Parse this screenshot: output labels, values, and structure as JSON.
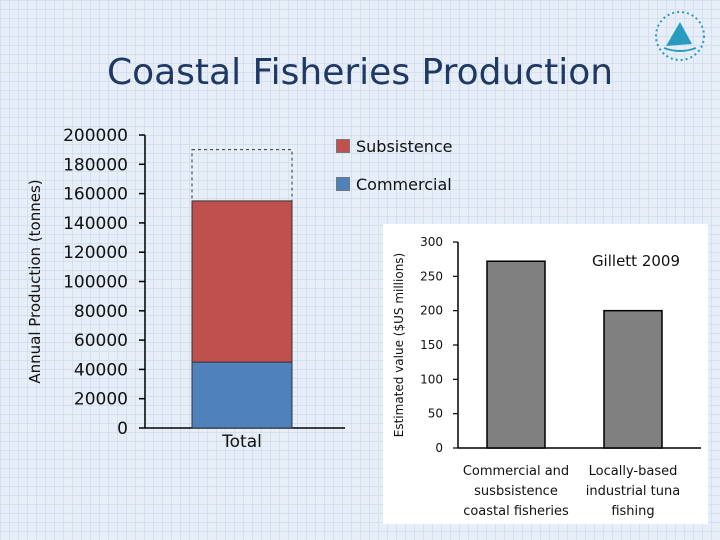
{
  "title": "Coastal Fisheries Production",
  "chart_data": [
    {
      "type": "bar",
      "stacked": true,
      "ylabel": "Annual Production (tonnes)",
      "ylim": [
        0,
        200000
      ],
      "yticks": [
        "0",
        "20000",
        "40000",
        "60000",
        "80000",
        "100000",
        "120000",
        "140000",
        "160000",
        "180000",
        "200000"
      ],
      "categories": [
        "Total"
      ],
      "series": [
        {
          "name": "Commercial",
          "values": [
            45000
          ],
          "color": "#4f81bd"
        },
        {
          "name": "Subsistence",
          "values": [
            110000
          ],
          "color": "#c0504d"
        }
      ],
      "dashed_outline_top": 190000,
      "legend": {
        "placement": "top-right",
        "items": [
          "Subsistence",
          "Commercial"
        ]
      }
    },
    {
      "type": "bar",
      "ylabel": "Estimated value ($US millions)",
      "ylim": [
        0,
        300
      ],
      "yticks": [
        "0",
        "50",
        "100",
        "150",
        "200",
        "250",
        "300"
      ],
      "categories": [
        [
          "Commercial and",
          "susbsistence",
          "coastal fisheries"
        ],
        [
          "Locally-based",
          "industrial tuna",
          "fishing"
        ]
      ],
      "values": [
        272,
        200
      ],
      "bar_color": "#808080",
      "annotation": "Gillett 2009"
    }
  ],
  "colors": {
    "title": "#1f3864",
    "background": "#e7eef8"
  }
}
